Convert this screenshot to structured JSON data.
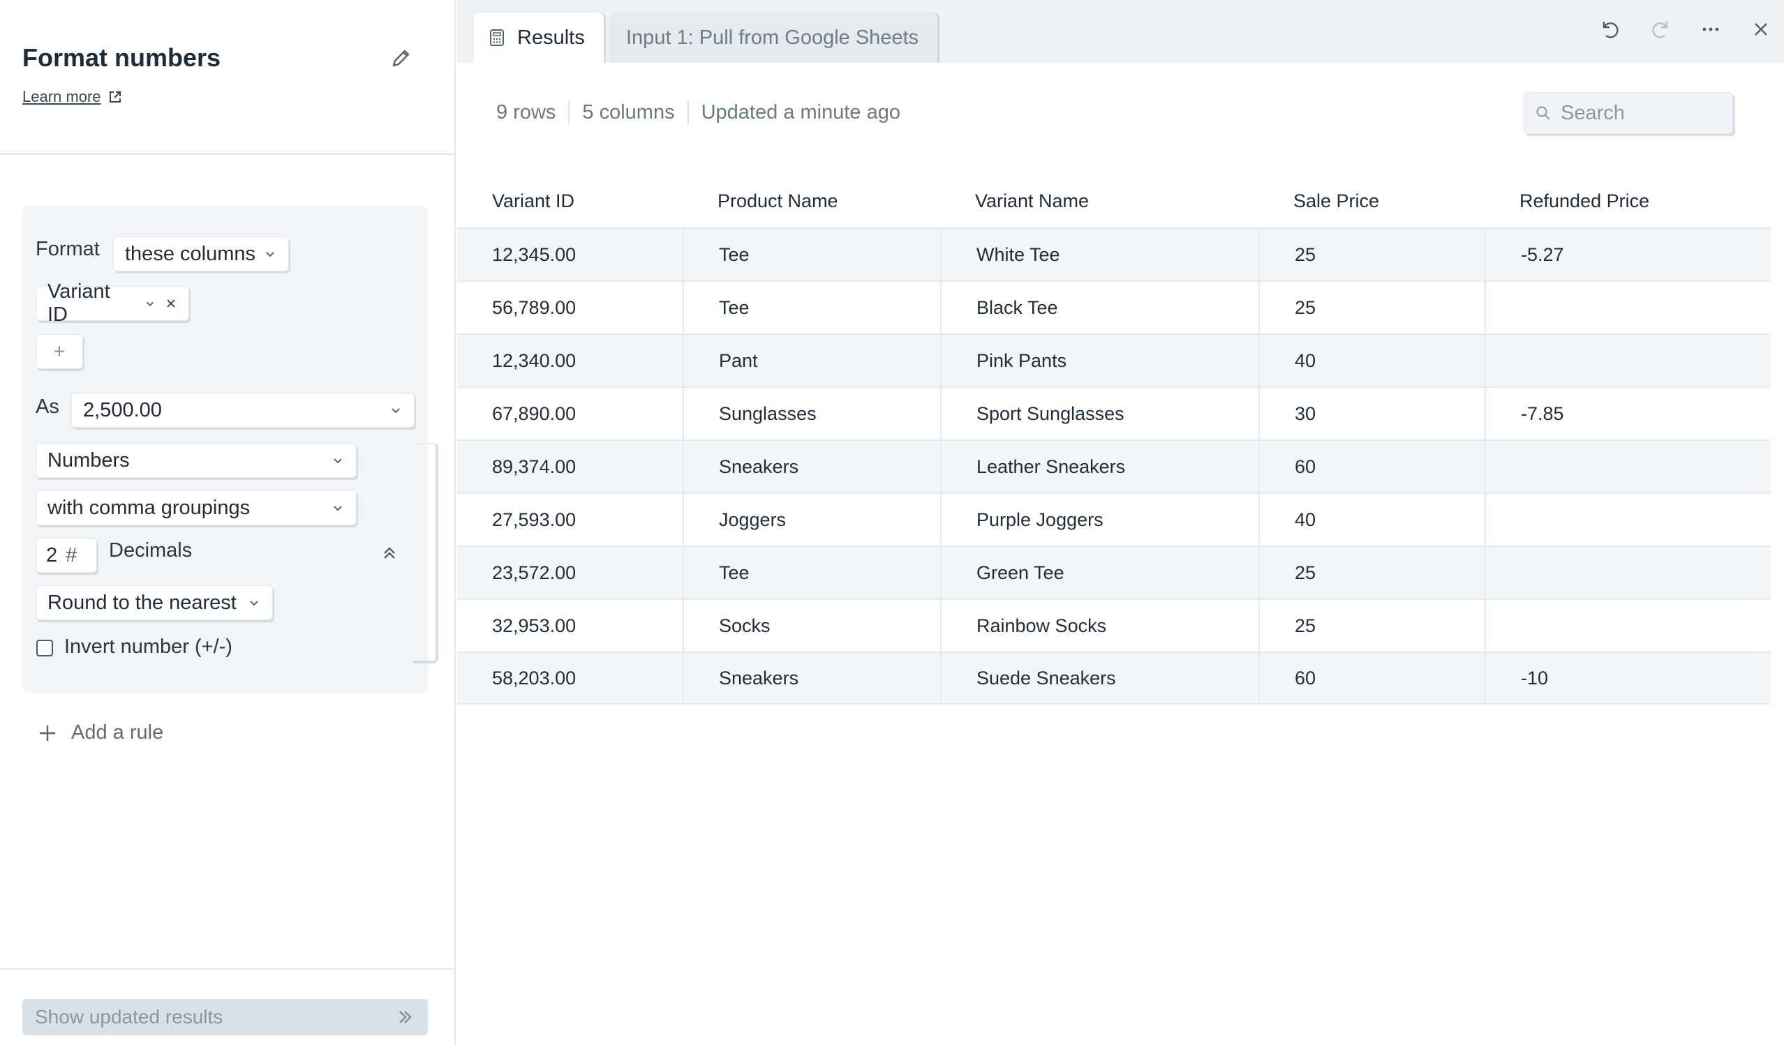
{
  "left_panel": {
    "title": "Format numbers",
    "learn_more": "Learn more",
    "rule": {
      "format_label": "Format",
      "columns_mode": "these columns",
      "selected_column": "Variant ID",
      "add_column": "+",
      "as_label": "As",
      "as_value": "2,500.00",
      "type": "Numbers",
      "grouping": "with comma groupings",
      "decimals_value": "2",
      "decimals_hash": "#",
      "decimals_label": "Decimals",
      "rounding": "Round to the nearest",
      "invert_label": "Invert number (+/-)"
    },
    "add_rule": "Add a rule",
    "show_results": "Show updated results"
  },
  "tabs": [
    {
      "label": "Results",
      "active": true
    },
    {
      "label": "Input 1: Pull from Google Sheets",
      "active": false
    }
  ],
  "toolbar": {
    "undo": "undo-icon",
    "redo": "redo-icon",
    "more": "more-icon",
    "close": "close-icon"
  },
  "meta": {
    "rows": "9 rows",
    "columns": "5 columns",
    "updated": "Updated a minute ago"
  },
  "search": {
    "placeholder": "Search"
  },
  "table": {
    "headers": [
      "Variant ID",
      "Product Name",
      "Variant Name",
      "Sale Price",
      "Refunded Price"
    ],
    "rows": [
      [
        "12,345.00",
        "Tee",
        "White Tee",
        "25",
        "-5.27"
      ],
      [
        "56,789.00",
        "Tee",
        "Black Tee",
        "25",
        ""
      ],
      [
        "12,340.00",
        "Pant",
        "Pink Pants",
        "40",
        ""
      ],
      [
        "67,890.00",
        "Sunglasses",
        "Sport Sunglasses",
        "30",
        "-7.85"
      ],
      [
        "89,374.00",
        "Sneakers",
        "Leather Sneakers",
        "60",
        ""
      ],
      [
        "27,593.00",
        "Joggers",
        "Purple Joggers",
        "40",
        ""
      ],
      [
        "23,572.00",
        "Tee",
        "Green Tee",
        "25",
        ""
      ],
      [
        "32,953.00",
        "Socks",
        "Rainbow Socks",
        "25",
        ""
      ],
      [
        "58,203.00",
        "Sneakers",
        "Suede Sneakers",
        "60",
        "-10"
      ]
    ]
  }
}
